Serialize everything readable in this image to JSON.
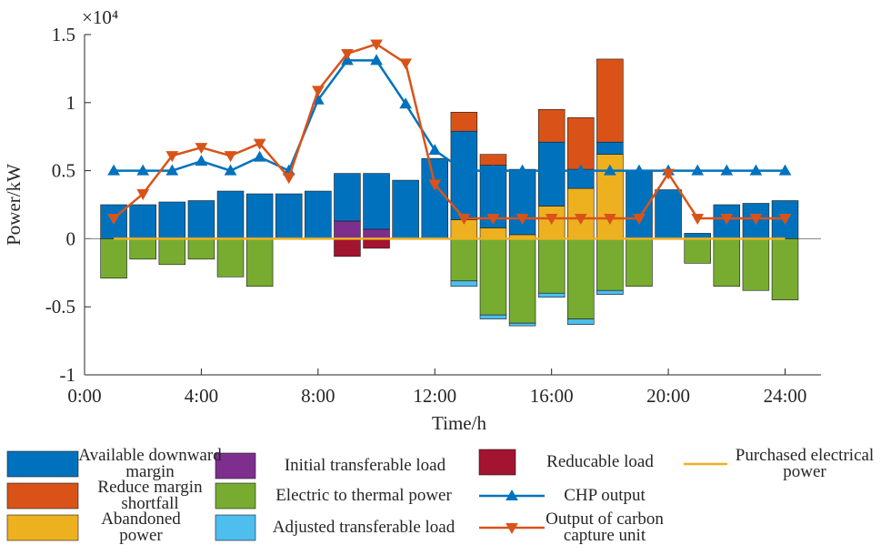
{
  "chart_data": {
    "type": "bar",
    "x_label": "Time/h",
    "y_label": "Power/kW",
    "y_exponent": "×10⁴",
    "x": [
      1,
      2,
      3,
      4,
      5,
      6,
      7,
      8,
      9,
      10,
      11,
      12,
      13,
      14,
      15,
      16,
      17,
      18,
      19,
      20,
      21,
      22,
      23,
      24
    ],
    "xlim": [
      0,
      25.23
    ],
    "xticks": [
      {
        "value": 0,
        "label": "0:00"
      },
      {
        "value": 4,
        "label": "4:00"
      },
      {
        "value": 8,
        "label": "8:00"
      },
      {
        "value": 12,
        "label": "12:00"
      },
      {
        "value": 16,
        "label": "16:00"
      },
      {
        "value": 20,
        "label": "20:00"
      },
      {
        "value": 24,
        "label": "24:00"
      }
    ],
    "ylim": [
      -1,
      1.5
    ],
    "yticks": [
      -1,
      -0.5,
      0,
      0.5,
      1,
      1.5
    ],
    "series": [
      {
        "name": "Available downward margin",
        "color": "#0072BD",
        "type": "bar",
        "values": [
          0.25,
          0.25,
          0.27,
          0.28,
          0.35,
          0.33,
          0.33,
          0.35,
          0.35,
          0.41,
          0.43,
          0.59,
          0.65,
          0.46,
          0.48,
          0.47,
          0.14,
          0.09,
          0.5,
          0.36,
          0.04,
          0.25,
          0.26,
          0.28
        ]
      },
      {
        "name": "Reduce margin shortfall",
        "color": "#D95319",
        "type": "bar",
        "values": [
          0,
          0,
          0,
          0,
          0,
          0,
          0,
          0,
          0,
          0,
          0,
          0,
          0.14,
          0.08,
          0,
          0.24,
          0.38,
          0.61,
          0,
          0,
          0,
          0,
          0,
          0
        ]
      },
      {
        "name": "Abandoned power",
        "color": "#EDB120",
        "type": "bar",
        "values": [
          0,
          0,
          0,
          0,
          0,
          0,
          0,
          0,
          0,
          0,
          0,
          0,
          0.14,
          0.08,
          0.03,
          0.24,
          0.37,
          0.62,
          0,
          0,
          0,
          0,
          0,
          0
        ]
      },
      {
        "name": "Initial transferable load",
        "color": "#7E2F8E",
        "type": "bar",
        "values": [
          0,
          0,
          0,
          0,
          0,
          0,
          0,
          0,
          0.13,
          0.07,
          0,
          0,
          0,
          0,
          0,
          0,
          0,
          0,
          0,
          0,
          0,
          0,
          0,
          0
        ]
      },
      {
        "name": "Electric to thermal power",
        "color": "#77AC30",
        "type": "bar",
        "values": [
          -0.29,
          -0.15,
          -0.19,
          -0.15,
          -0.28,
          -0.35,
          0,
          0,
          0,
          0,
          0,
          0,
          -0.31,
          -0.56,
          -0.62,
          -0.4,
          -0.59,
          -0.38,
          -0.35,
          0,
          -0.18,
          -0.35,
          -0.38,
          -0.45
        ]
      },
      {
        "name": "Adjusted transferable load",
        "color": "#4DBEEE",
        "type": "bar",
        "values": [
          0,
          0,
          0,
          0,
          0,
          0,
          0,
          0,
          0,
          0,
          0,
          0,
          -0.04,
          -0.03,
          -0.02,
          -0.03,
          -0.04,
          -0.03,
          0,
          0,
          0,
          0,
          0,
          0
        ]
      },
      {
        "name": "Reducable load",
        "color": "#A2142F",
        "type": "bar",
        "values": [
          0,
          0,
          0,
          0,
          0,
          0,
          0,
          0,
          -0.13,
          -0.07,
          0,
          0,
          0,
          0,
          0,
          0,
          0,
          0,
          0,
          0,
          0,
          0,
          0,
          0
        ]
      },
      {
        "name": "CHP output",
        "color": "#0072BD",
        "type": "line",
        "marker": "^",
        "values": [
          0.5,
          0.5,
          0.5,
          0.57,
          0.5,
          0.6,
          0.5,
          1.02,
          1.31,
          1.31,
          0.99,
          0.65,
          0.5,
          0.5,
          0.5,
          0.5,
          0.5,
          0.5,
          0.5,
          0.5,
          0.5,
          0.5,
          0.5,
          0.5
        ]
      },
      {
        "name": "Output of carbon capture unit",
        "color": "#D95319",
        "type": "line",
        "marker": "v",
        "values": [
          0.15,
          0.33,
          0.61,
          0.67,
          0.61,
          0.7,
          0.45,
          1.09,
          1.36,
          1.43,
          1.29,
          0.4,
          0.15,
          0.15,
          0.15,
          0.15,
          0.15,
          0.15,
          0.15,
          0.48,
          0.15,
          0.15,
          0.15,
          0.15
        ]
      },
      {
        "name": "Purchased electrical power",
        "color": "#EDB120",
        "type": "line",
        "values": [
          0,
          0,
          0,
          0,
          0,
          0,
          0,
          0,
          0,
          0,
          0,
          0,
          0,
          0,
          0,
          0,
          0,
          0,
          0,
          0,
          0,
          0,
          0,
          0
        ]
      }
    ]
  }
}
